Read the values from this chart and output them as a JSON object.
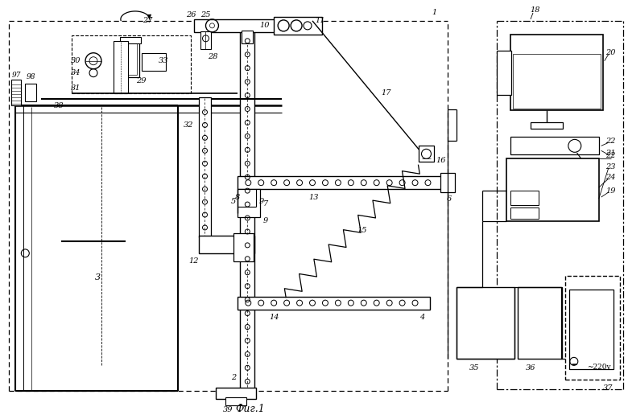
{
  "bg": "#ffffff",
  "fw": 7.8,
  "fh": 5.16,
  "dpi": 100,
  "caption": "Фиг.1"
}
